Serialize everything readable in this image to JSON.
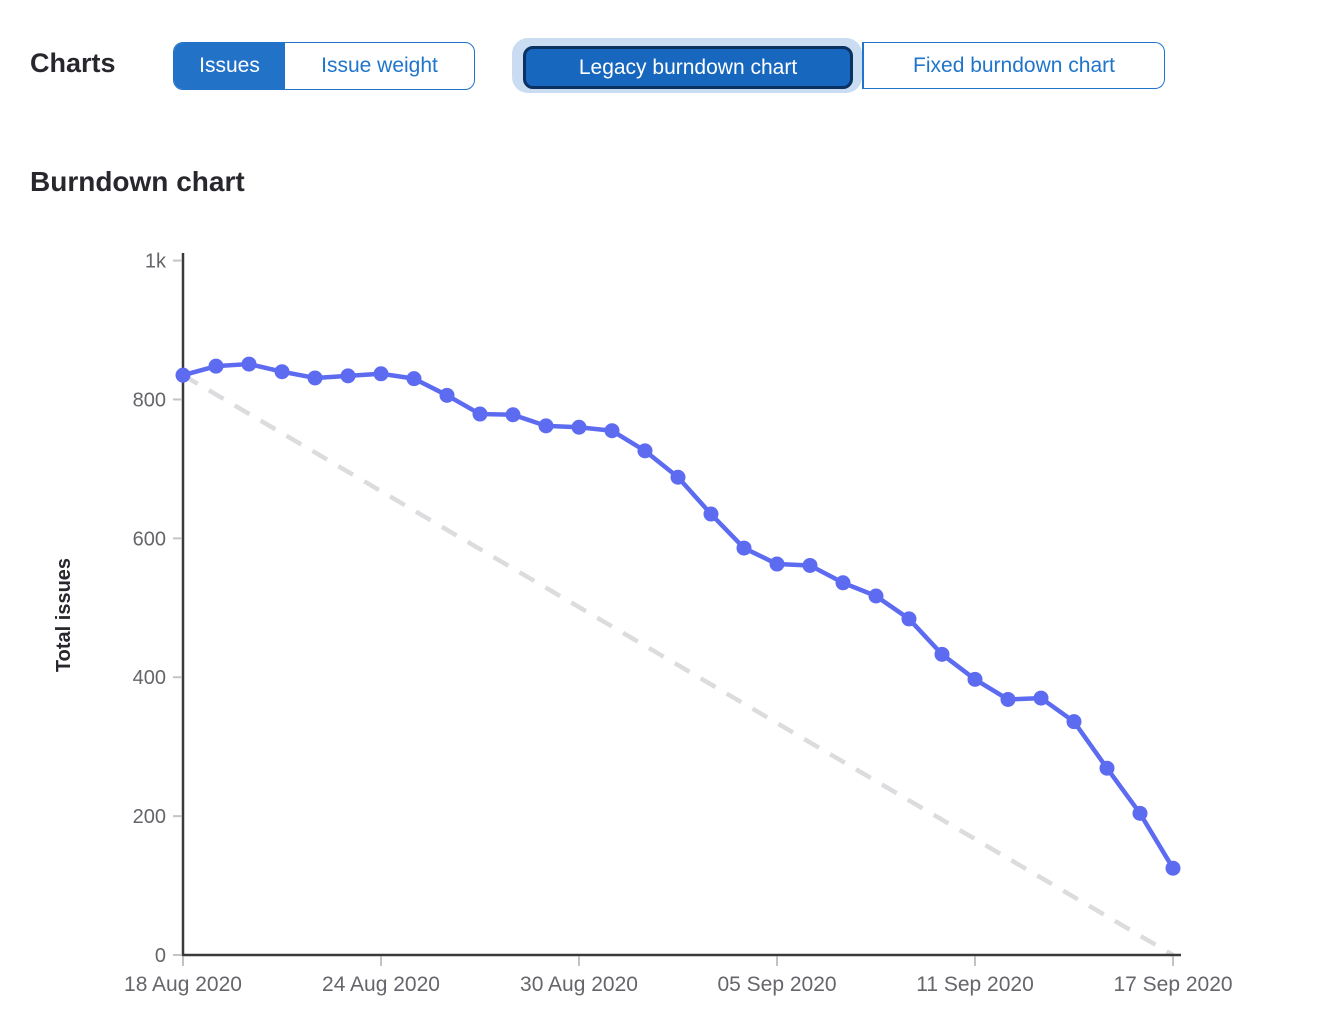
{
  "header": {
    "charts_label": "Charts",
    "issue_toggle": {
      "options": [
        {
          "label": "Issues",
          "selected": true
        },
        {
          "label": "Issue weight",
          "selected": false
        }
      ]
    },
    "chart_type_toggle": {
      "options": [
        {
          "label": "Legacy burndown chart",
          "selected": true,
          "focused": true
        },
        {
          "label": "Fixed burndown chart",
          "selected": false
        }
      ]
    }
  },
  "section_title": "Burndown chart",
  "chart_data": {
    "type": "line",
    "title": "Burndown chart",
    "xlabel": "",
    "ylabel": "Total issues",
    "ylim": [
      0,
      1000
    ],
    "grid": false,
    "legend_position": "none",
    "y_ticks": [
      {
        "value": 0,
        "label": "0"
      },
      {
        "value": 200,
        "label": "200"
      },
      {
        "value": 400,
        "label": "400"
      },
      {
        "value": 600,
        "label": "600"
      },
      {
        "value": 800,
        "label": "800"
      },
      {
        "value": 1000,
        "label": "1k"
      }
    ],
    "x_unit": "day_index",
    "x_ticks": [
      {
        "day": 0,
        "label": "18 Aug 2020"
      },
      {
        "day": 6,
        "label": "24 Aug 2020"
      },
      {
        "day": 12,
        "label": "30 Aug 2020"
      },
      {
        "day": 18,
        "label": "05 Sep 2020"
      },
      {
        "day": 24,
        "label": "11 Sep 2020"
      },
      {
        "day": 30,
        "label": "17 Sep 2020"
      }
    ],
    "series": [
      {
        "name": "Total issues",
        "style": "solid",
        "color": "#5d6bf1",
        "days": [
          0,
          1,
          2,
          3,
          4,
          5,
          6,
          7,
          8,
          9,
          10,
          11,
          12,
          13,
          14,
          15,
          16,
          17,
          18,
          19,
          20,
          21,
          22,
          23,
          24,
          25,
          26,
          27,
          28,
          29,
          30
        ],
        "values": [
          835,
          848,
          851,
          840,
          831,
          834,
          837,
          830,
          806,
          779,
          778,
          762,
          760,
          755,
          726,
          688,
          635,
          586,
          563,
          561,
          536,
          517,
          484,
          433,
          397,
          368,
          370,
          336,
          269,
          204,
          125
        ]
      },
      {
        "name": "Guideline",
        "style": "dashed",
        "color": "#dcdcde",
        "points": [
          [
            0,
            835
          ],
          [
            30,
            0
          ]
        ]
      }
    ]
  },
  "colors": {
    "accent_blue": "#1f75cb",
    "selected_fill": "#2272c8",
    "legacy_fill": "#1767be",
    "legacy_border": "#0b3161",
    "focus_halo": "#c9dcf2",
    "series_line": "#5d6bf1",
    "ideal_line": "#dcdcde",
    "axis_line": "#3a3a3a",
    "tick_mark": "#c4c4c4",
    "tick_label": "#65656b",
    "heading": "#28272d"
  }
}
